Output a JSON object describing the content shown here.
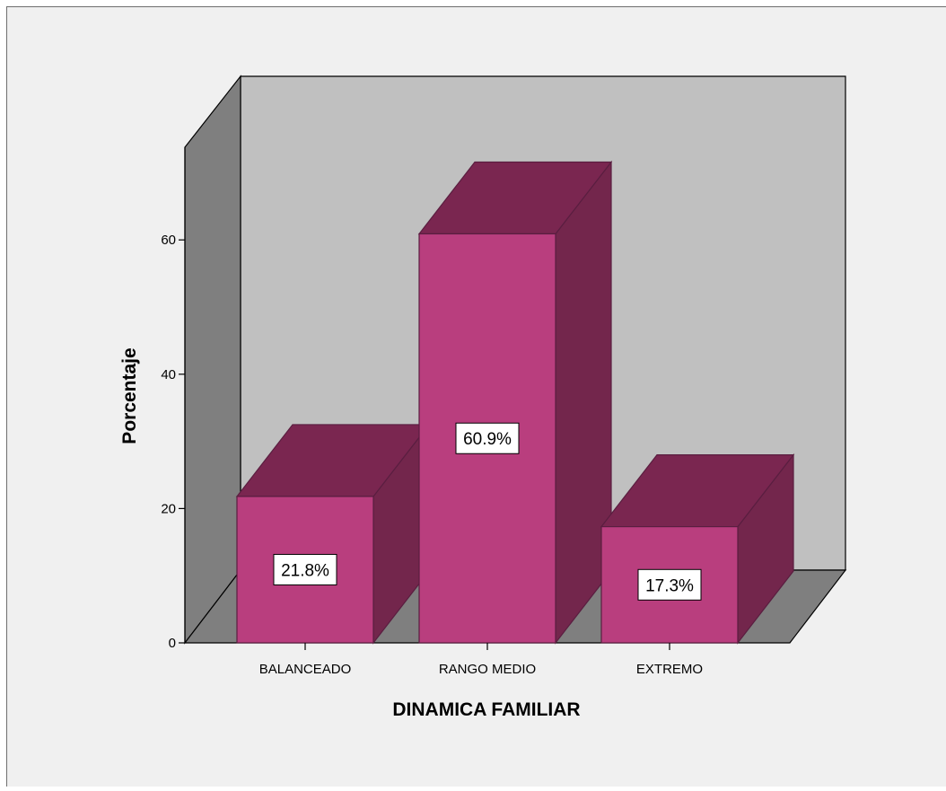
{
  "chart_data": {
    "type": "bar",
    "three_d": true,
    "categories": [
      "BALANCEADO",
      "RANGO MEDIO",
      "EXTREMO"
    ],
    "values": [
      21.8,
      60.9,
      17.3
    ],
    "data_labels": [
      "21.8%",
      "60.9%",
      "17.3%"
    ],
    "xlabel": "DINAMICA FAMILIAR",
    "ylabel": "Porcentaje",
    "ylim": [
      0,
      60
    ],
    "yticks": [
      "0",
      "20",
      "40",
      "60"
    ],
    "grid": false,
    "legend": "none"
  },
  "colors": {
    "page_background": "#f0f0f0",
    "back_wall": "#c0c0c0",
    "side_wall": "#7f7f7f",
    "floor": "#7f7f7f",
    "bar_front": "#b93e7e",
    "bar_top": "#7a2650",
    "bar_side": "#73264c",
    "bar_stroke": "#5a1e40",
    "label_box": "#ffffff",
    "text": "#000000"
  }
}
